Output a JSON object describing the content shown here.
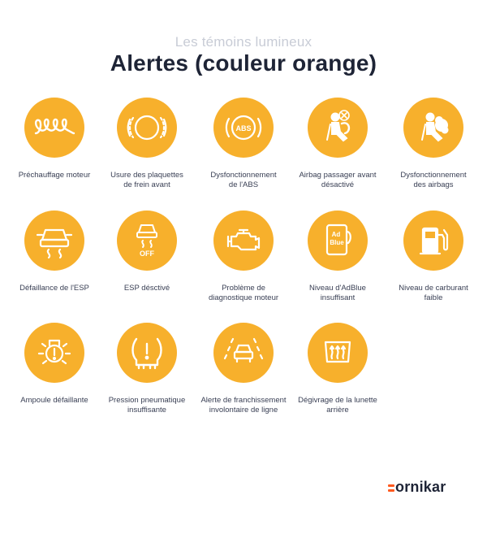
{
  "header": {
    "subtitle": "Les témoins lumineux",
    "title": "Alertes (couleur orange)"
  },
  "colors": {
    "circle": "#f7b02c",
    "title": "#1e2436",
    "subtitle": "#c8ccd6",
    "brand_accent": "#ff5a1f"
  },
  "items": [
    {
      "icon": "preheat-coil-icon",
      "line1": "Préchauffage moteur",
      "line2": ""
    },
    {
      "icon": "brake-pads-icon",
      "line1": "Usure des plaquettes",
      "line2": "de frein avant"
    },
    {
      "icon": "abs-icon",
      "line1": "Dysfonctionnement",
      "line2": "de l'ABS"
    },
    {
      "icon": "passenger-airbag-off-icon",
      "line1": "Airbag passager avant",
      "line2": "désactivé"
    },
    {
      "icon": "airbag-fault-icon",
      "line1": "Dysfonctionnement",
      "line2": "des airbags"
    },
    {
      "icon": "esp-icon",
      "line1": "Défaillance de l'ESP",
      "line2": ""
    },
    {
      "icon": "esp-off-icon",
      "line1": "ESP désctivé",
      "line2": ""
    },
    {
      "icon": "engine-check-icon",
      "line1": "Problème de",
      "line2": "diagnostique moteur"
    },
    {
      "icon": "adblue-icon",
      "line1": "Niveau d'AdBlue",
      "line2": "insuffisant"
    },
    {
      "icon": "fuel-pump-icon",
      "line1": "Niveau de carburant",
      "line2": "faible"
    },
    {
      "icon": "bulb-fault-icon",
      "line1": "Ampoule défaillante",
      "line2": ""
    },
    {
      "icon": "tire-pressure-icon",
      "line1": "Pression pneumatique",
      "line2": "insuffisante"
    },
    {
      "icon": "lane-departure-icon",
      "line1": "Alerte de franchissement",
      "line2": "involontaire de ligne"
    },
    {
      "icon": "rear-defrost-icon",
      "line1": "Dégivrage de la lunette",
      "line2": "arrière"
    }
  ],
  "icon_text": {
    "abs": "ABS",
    "esp_off": "OFF",
    "adblue_1": "Ad",
    "adblue_2": "Blue"
  },
  "brand": {
    "logo_text": "ornikar"
  }
}
